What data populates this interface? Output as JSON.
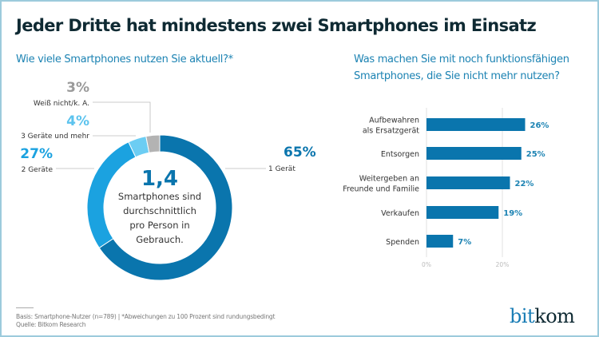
{
  "title": "Jeder Dritte hat mindestens zwei Smartphones im Einsatz",
  "brand": {
    "logo_text_a": "bit",
    "logo_text_b": "kom",
    "colors": {
      "blue": "#1a7db5",
      "dark": "#0f2a33"
    }
  },
  "footer": {
    "basis": "Basis: Smartphone-Nutzer (n=789) | *Abweichungen zu 100 Prozent sind rundungsbedingt",
    "source": "Quelle: Bitkom Research"
  },
  "chart_data": [
    {
      "type": "pie",
      "title": "Wie viele Smartphones nutzen Sie aktuell?*",
      "donut": true,
      "center": {
        "value": "1,4",
        "text": "Smartphones sind durchschnittlich pro Person in Gebrauch."
      },
      "slices": [
        {
          "label": "1 Gerät",
          "value": 65,
          "display": "65%",
          "color": "#0a75ad"
        },
        {
          "label": "2 Geräte",
          "value": 27,
          "display": "27%",
          "color": "#1ba2e0"
        },
        {
          "label": "3 Geräte und mehr",
          "value": 4,
          "display": "4%",
          "color": "#6ccdf3"
        },
        {
          "label": "Weiß nicht/k. A.",
          "value": 3,
          "display": "3%",
          "color": "#b3b3b3"
        }
      ]
    },
    {
      "type": "bar",
      "orientation": "horizontal",
      "title": "Was machen Sie mit noch funktionsfähigen Smartphones, die Sie nicht mehr nutzen?",
      "categories": [
        [
          "Aufbewahren",
          "als Ersatzgerät"
        ],
        [
          "Entsorgen"
        ],
        [
          "Weitergeben an",
          "Freunde und Familie"
        ],
        [
          "Verkaufen"
        ],
        [
          "Spenden"
        ]
      ],
      "values": [
        26,
        25,
        22,
        19,
        7
      ],
      "value_labels": [
        "26%",
        "25%",
        "22%",
        "19%",
        "7%"
      ],
      "xticks": [
        "0%",
        "20%"
      ],
      "xlim": [
        0,
        30
      ],
      "grid": true,
      "color": "#0a75ad"
    }
  ]
}
